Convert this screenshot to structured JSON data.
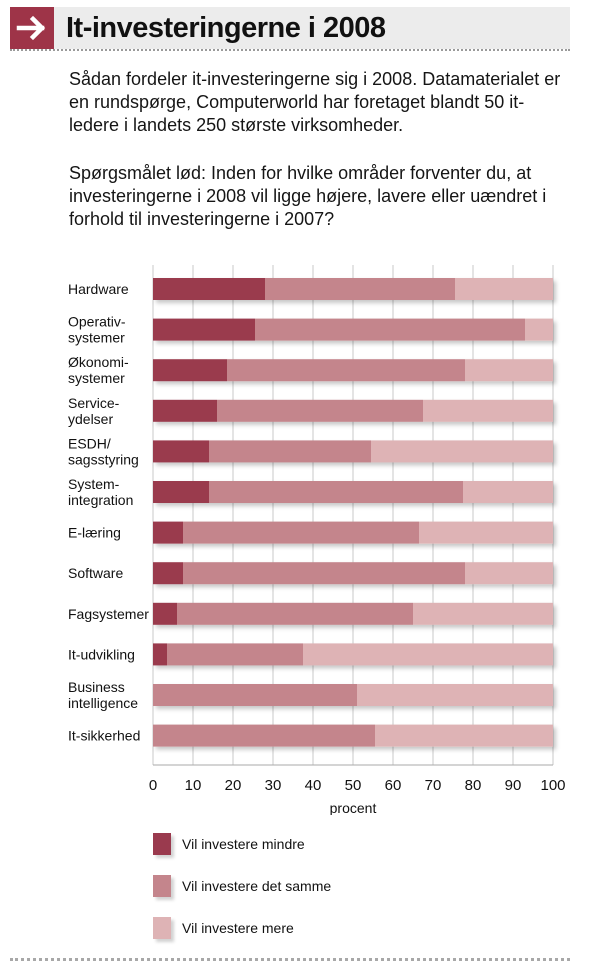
{
  "header": {
    "title": "It-investeringerne i 2008",
    "icon": "arrow-right-icon",
    "accent_color": "#9e3448"
  },
  "intro": "Sådan fordeler it-investeringerne sig i 2008. Datamaterialet er en rundspørge, Computerworld har foretaget blandt 50 it-ledere i landets 250 største virksomheder.",
  "question": "Spørgsmålet lød: Inden for hvilke områder forventer du, at investeringerne i 2008 vil ligge højere, lavere eller uændret i forhold til investeringerne i 2007?",
  "chart_data": {
    "type": "bar",
    "orientation": "horizontal",
    "stacked": true,
    "categories": [
      "Hardware",
      "Operativ-\nsystemer",
      "Økonomi-\nsystemer",
      "Service-\nydelser",
      "ESDH/\nsagsstyring",
      "System-\nintegration",
      "E-læring",
      "Software",
      "Fagsystemer",
      "It-udvikling",
      "Business\nintelligence",
      "It-sikkerhed"
    ],
    "series": [
      {
        "name": "Vil investere mindre",
        "color": "#9a3a4e",
        "values": [
          28,
          25.5,
          18.5,
          16,
          14,
          14,
          7.5,
          7.5,
          6,
          3.5,
          0,
          0
        ]
      },
      {
        "name": "Vil investere det samme",
        "color": "#c4858c",
        "values": [
          47.5,
          67.5,
          59.5,
          51.5,
          40.5,
          63.5,
          59,
          70.5,
          59,
          34,
          51,
          55.5
        ]
      },
      {
        "name": "Vil investere mere",
        "color": "#deb3b5",
        "values": [
          24.5,
          7,
          22,
          32.5,
          45.5,
          22.5,
          33.5,
          22,
          35,
          62.5,
          49,
          44.5
        ]
      }
    ],
    "xlabel": "procent",
    "xlim": [
      0,
      100
    ],
    "xticks": [
      0,
      10,
      20,
      30,
      40,
      50,
      60,
      70,
      80,
      90,
      100
    ],
    "grid": "vertical",
    "legend_position": "bottom"
  }
}
